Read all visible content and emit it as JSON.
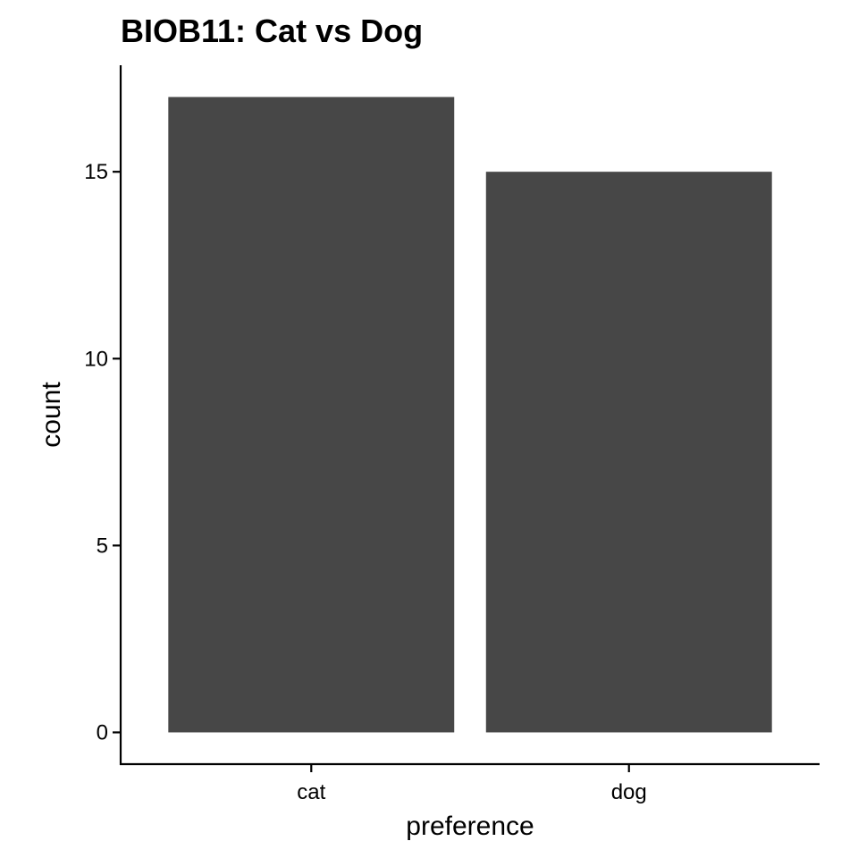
{
  "chart_data": {
    "type": "bar",
    "title": "BIOB11: Cat vs Dog",
    "xlabel": "preference",
    "ylabel": "count",
    "categories": [
      "cat",
      "dog"
    ],
    "values": [
      17,
      15
    ],
    "yticks": [
      0,
      5,
      10,
      15
    ],
    "ylim": [
      -0.85,
      17.85
    ],
    "grid": false,
    "legend": "none",
    "bar_color": "#474747",
    "axis_color": "#000000"
  }
}
